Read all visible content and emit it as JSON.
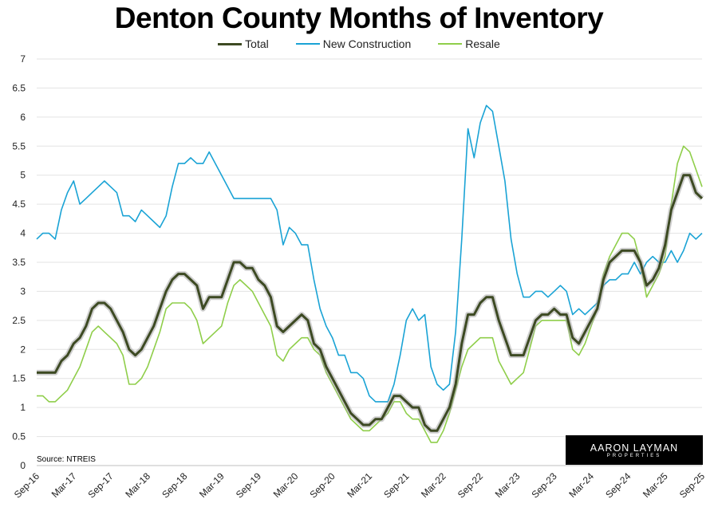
{
  "chart_data": {
    "type": "line",
    "title": "Denton County Months of Inventory",
    "ylim": [
      0,
      7
    ],
    "ytick_labels": [
      "0",
      "0.5",
      "1",
      "1.5",
      "2",
      "2.5",
      "3",
      "3.5",
      "4",
      "4.5",
      "5",
      "5.5",
      "6",
      "6.5",
      "7"
    ],
    "xtick_labels": [
      "Sep-16",
      "Mar-17",
      "Sep-17",
      "Mar-18",
      "Sep-18",
      "Mar-19",
      "Sep-19",
      "Mar-20",
      "Sep-20",
      "Mar-21",
      "Sep-21",
      "Mar-22",
      "Sep-22",
      "Mar-23",
      "Sep-23",
      "Mar-24",
      "Sep-24",
      "Mar-25",
      "Sep-25"
    ],
    "grid": true,
    "legend_position": "top",
    "x_start": "Sep-16",
    "x_end": "Sep-25",
    "series": [
      {
        "name": "Total",
        "color": "#3d4a23",
        "values": [
          1.6,
          1.6,
          1.6,
          1.6,
          1.8,
          1.9,
          2.1,
          2.2,
          2.4,
          2.7,
          2.8,
          2.8,
          2.7,
          2.5,
          2.3,
          2.0,
          1.9,
          2.0,
          2.2,
          2.4,
          2.7,
          3.0,
          3.2,
          3.3,
          3.3,
          3.2,
          3.1,
          2.7,
          2.9,
          2.9,
          2.9,
          3.2,
          3.5,
          3.5,
          3.4,
          3.4,
          3.2,
          3.1,
          2.9,
          2.4,
          2.3,
          2.4,
          2.5,
          2.6,
          2.5,
          2.1,
          2.0,
          1.7,
          1.5,
          1.3,
          1.1,
          0.9,
          0.8,
          0.7,
          0.7,
          0.8,
          0.8,
          1.0,
          1.2,
          1.2,
          1.1,
          1.0,
          1.0,
          0.7,
          0.6,
          0.6,
          0.8,
          1.0,
          1.4,
          2.1,
          2.6,
          2.6,
          2.8,
          2.9,
          2.9,
          2.5,
          2.2,
          1.9,
          1.9,
          1.9,
          2.2,
          2.5,
          2.6,
          2.6,
          2.7,
          2.6,
          2.6,
          2.2,
          2.1,
          2.3,
          2.5,
          2.7,
          3.2,
          3.5,
          3.6,
          3.7,
          3.7,
          3.7,
          3.5,
          3.1,
          3.2,
          3.4,
          3.8,
          4.4,
          4.7,
          5.0,
          5.0,
          4.7,
          4.6
        ]
      },
      {
        "name": "New Construction",
        "color": "#1aa3d5",
        "values": [
          3.9,
          4.0,
          4.0,
          3.9,
          4.4,
          4.7,
          4.9,
          4.5,
          4.6,
          4.7,
          4.8,
          4.9,
          4.8,
          4.7,
          4.3,
          4.3,
          4.2,
          4.4,
          4.3,
          4.2,
          4.1,
          4.3,
          4.8,
          5.2,
          5.2,
          5.3,
          5.2,
          5.2,
          5.4,
          5.2,
          5.0,
          4.8,
          4.6,
          4.6,
          4.6,
          4.6,
          4.6,
          4.6,
          4.6,
          4.4,
          3.8,
          4.1,
          4.0,
          3.8,
          3.8,
          3.2,
          2.7,
          2.4,
          2.2,
          1.9,
          1.9,
          1.6,
          1.6,
          1.5,
          1.2,
          1.1,
          1.1,
          1.1,
          1.4,
          1.9,
          2.5,
          2.7,
          2.5,
          2.6,
          1.7,
          1.4,
          1.3,
          1.4,
          2.3,
          3.9,
          5.8,
          5.3,
          5.9,
          6.2,
          6.1,
          5.5,
          4.9,
          3.9,
          3.3,
          2.9,
          2.9,
          3.0,
          3.0,
          2.9,
          3.0,
          3.1,
          3.0,
          2.6,
          2.7,
          2.6,
          2.7,
          2.8,
          3.1,
          3.2,
          3.2,
          3.3,
          3.3,
          3.5,
          3.3,
          3.5,
          3.6,
          3.5,
          3.5,
          3.7,
          3.5,
          3.7,
          4.0,
          3.9,
          4.0
        ]
      },
      {
        "name": "Resale",
        "color": "#8fce4a",
        "values": [
          1.2,
          1.2,
          1.1,
          1.1,
          1.2,
          1.3,
          1.5,
          1.7,
          2.0,
          2.3,
          2.4,
          2.3,
          2.2,
          2.1,
          1.9,
          1.4,
          1.4,
          1.5,
          1.7,
          2.0,
          2.3,
          2.7,
          2.8,
          2.8,
          2.8,
          2.7,
          2.5,
          2.1,
          2.2,
          2.3,
          2.4,
          2.8,
          3.1,
          3.2,
          3.1,
          3.0,
          2.8,
          2.6,
          2.4,
          1.9,
          1.8,
          2.0,
          2.1,
          2.2,
          2.2,
          2.0,
          1.9,
          1.6,
          1.4,
          1.2,
          1.0,
          0.8,
          0.7,
          0.6,
          0.6,
          0.7,
          0.8,
          0.9,
          1.1,
          1.1,
          0.9,
          0.8,
          0.8,
          0.6,
          0.4,
          0.4,
          0.6,
          0.9,
          1.3,
          1.7,
          2.0,
          2.1,
          2.2,
          2.2,
          2.2,
          1.8,
          1.6,
          1.4,
          1.5,
          1.6,
          2.0,
          2.4,
          2.5,
          2.5,
          2.5,
          2.5,
          2.5,
          2.0,
          1.9,
          2.1,
          2.4,
          2.7,
          3.3,
          3.6,
          3.8,
          4.0,
          4.0,
          3.9,
          3.5,
          2.9,
          3.1,
          3.3,
          3.6,
          4.5,
          5.2,
          5.5,
          5.4,
          5.1,
          4.8
        ]
      }
    ]
  },
  "source_text": "Source: NTREIS",
  "logo": {
    "name": "AARON LAYMAN",
    "sub": "PROPERTIES"
  }
}
